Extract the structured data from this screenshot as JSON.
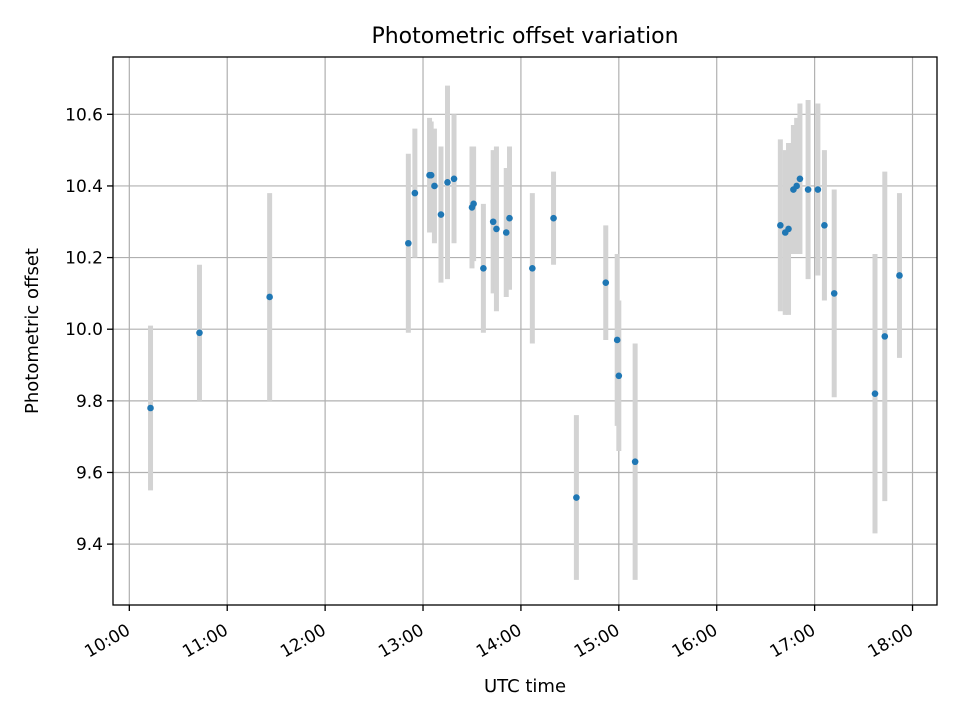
{
  "chart_data": {
    "type": "scatter",
    "title": "Photometric offset variation",
    "xlabel": "UTC time",
    "ylabel": "Photometric offset",
    "xlim": [
      "09:50",
      "18:15"
    ],
    "ylim": [
      9.23,
      10.76
    ],
    "x_ticks": [
      "10:00",
      "11:00",
      "12:00",
      "13:00",
      "14:00",
      "15:00",
      "16:00",
      "17:00",
      "18:00"
    ],
    "y_ticks": [
      9.4,
      9.6,
      9.8,
      10.0,
      10.2,
      10.4,
      10.6
    ],
    "grid": true,
    "colors": {
      "points": "#1f77b4",
      "errorbars": "#d3d3d3"
    },
    "points": [
      {
        "x": "10:13",
        "y": 9.78,
        "yerr": 0.23
      },
      {
        "x": "10:43",
        "y": 9.99,
        "yerr": 0.19
      },
      {
        "x": "11:26",
        "y": 10.09,
        "yerr": 0.29
      },
      {
        "x": "12:51",
        "y": 10.24,
        "yerr": 0.25
      },
      {
        "x": "12:55",
        "y": 10.38,
        "yerr": 0.18
      },
      {
        "x": "13:04",
        "y": 10.43,
        "yerr": 0.16
      },
      {
        "x": "13:05",
        "y": 10.43,
        "yerr": 0.15
      },
      {
        "x": "13:07",
        "y": 10.4,
        "yerr": 0.16
      },
      {
        "x": "13:11",
        "y": 10.32,
        "yerr": 0.19
      },
      {
        "x": "13:15",
        "y": 10.41,
        "yerr": 0.27
      },
      {
        "x": "13:19",
        "y": 10.42,
        "yerr": 0.18
      },
      {
        "x": "13:30",
        "y": 10.34,
        "yerr": 0.17
      },
      {
        "x": "13:31",
        "y": 10.35,
        "yerr": 0.16
      },
      {
        "x": "13:37",
        "y": 10.17,
        "yerr": 0.18
      },
      {
        "x": "13:43",
        "y": 10.3,
        "yerr": 0.2
      },
      {
        "x": "13:45",
        "y": 10.28,
        "yerr": 0.23
      },
      {
        "x": "13:51",
        "y": 10.27,
        "yerr": 0.18
      },
      {
        "x": "13:53",
        "y": 10.31,
        "yerr": 0.2
      },
      {
        "x": "14:07",
        "y": 10.17,
        "yerr": 0.21
      },
      {
        "x": "14:20",
        "y": 10.31,
        "yerr": 0.13
      },
      {
        "x": "14:34",
        "y": 9.53,
        "yerr": 0.23
      },
      {
        "x": "14:52",
        "y": 10.13,
        "yerr": 0.16
      },
      {
        "x": "14:59",
        "y": 9.97,
        "yerr": 0.24
      },
      {
        "x": "15:00",
        "y": 9.87,
        "yerr": 0.21
      },
      {
        "x": "15:10",
        "y": 9.63,
        "yerr": 0.33
      },
      {
        "x": "16:39",
        "y": 10.29,
        "yerr": 0.24
      },
      {
        "x": "16:42",
        "y": 10.27,
        "yerr": 0.23
      },
      {
        "x": "16:44",
        "y": 10.28,
        "yerr": 0.24
      },
      {
        "x": "16:47",
        "y": 10.39,
        "yerr": 0.18
      },
      {
        "x": "16:49",
        "y": 10.4,
        "yerr": 0.19
      },
      {
        "x": "16:51",
        "y": 10.42,
        "yerr": 0.21
      },
      {
        "x": "16:56",
        "y": 10.39,
        "yerr": 0.25
      },
      {
        "x": "17:02",
        "y": 10.39,
        "yerr": 0.24
      },
      {
        "x": "17:06",
        "y": 10.29,
        "yerr": 0.21
      },
      {
        "x": "17:12",
        "y": 10.1,
        "yerr": 0.29
      },
      {
        "x": "17:37",
        "y": 9.82,
        "yerr": 0.39
      },
      {
        "x": "17:43",
        "y": 9.98,
        "yerr": 0.46
      },
      {
        "x": "17:52",
        "y": 10.15,
        "yerr": 0.23
      }
    ]
  }
}
